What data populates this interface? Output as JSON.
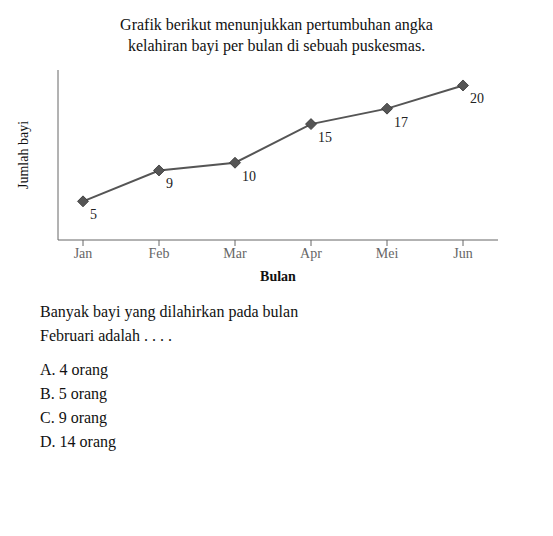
{
  "chart_data": {
    "type": "line",
    "title": "Grafik berikut menunjukkan pertumbuhan angka",
    "subtitle": "kelahiran bayi per bulan di sebuah puskesmas.",
    "categories": [
      "Jan",
      "Feb",
      "Mar",
      "Apr",
      "Mei",
      "Jun"
    ],
    "values": [
      5,
      9,
      10,
      15,
      17,
      20
    ],
    "xlabel": "Bulan",
    "ylabel": "Jumlah bayi",
    "color": "#555555",
    "marker": "diamond",
    "ylim": [
      0,
      22
    ],
    "grid": false,
    "tick_labels": "x",
    "data_labels": true,
    "annotations": [
      "Banyak bayi yang dilahirkan pada bulan",
      "Februari adalah . . . .",
      "A. 4 orang",
      "B. 5 orang",
      "C. 9 orang",
      "D. 14 orang"
    ]
  }
}
